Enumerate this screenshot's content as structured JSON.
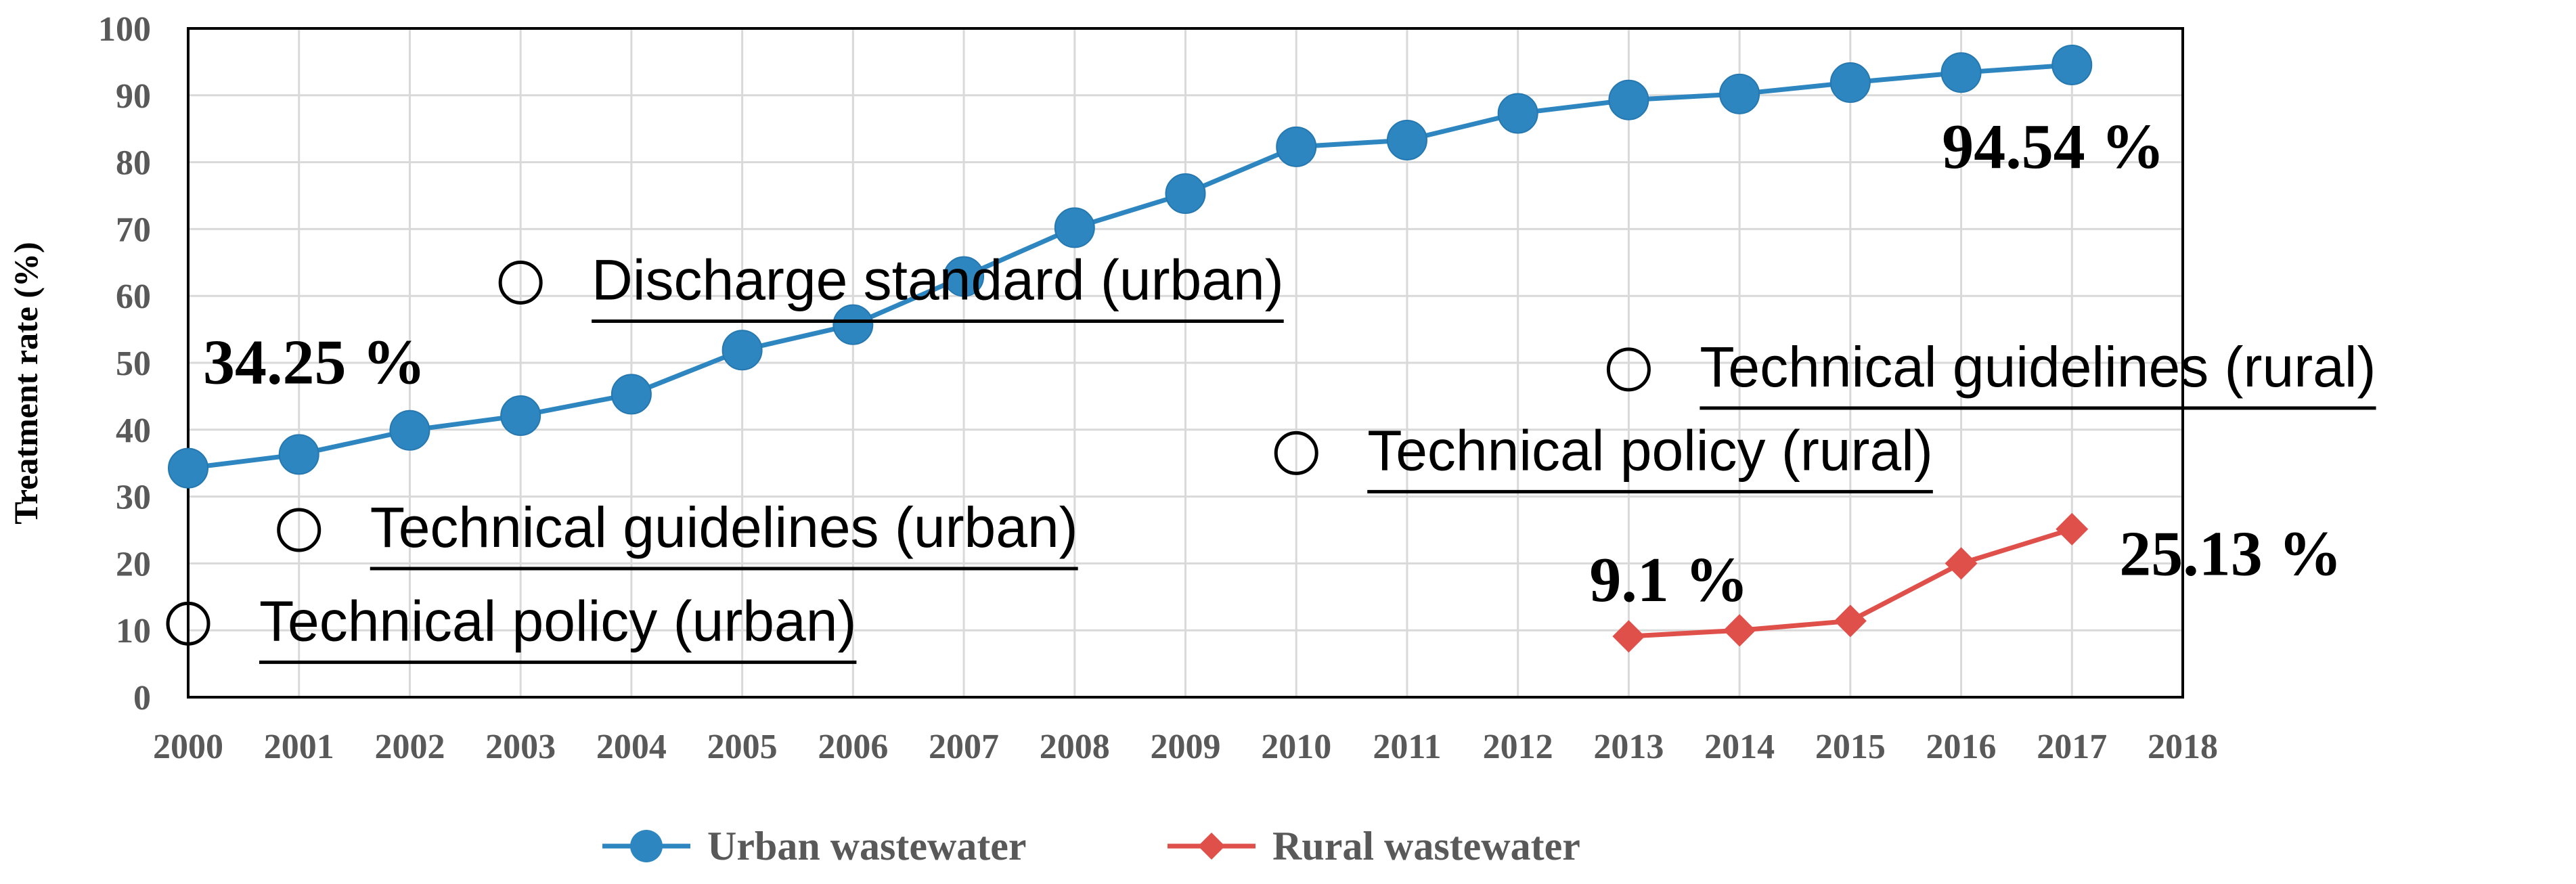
{
  "chart_data": {
    "type": "line",
    "title": "",
    "xlabel": "",
    "ylabel": "Treatment rate (%)",
    "xlim": [
      2000,
      2018
    ],
    "ylim": [
      0,
      100
    ],
    "x_ticks": [
      "2000",
      "2001",
      "2002",
      "2003",
      "2004",
      "2005",
      "2006",
      "2007",
      "2008",
      "2009",
      "2010",
      "2011",
      "2012",
      "2013",
      "2014",
      "2015",
      "2016",
      "2017",
      "2018"
    ],
    "y_ticks": [
      "0",
      "10",
      "20",
      "30",
      "40",
      "50",
      "60",
      "70",
      "80",
      "90",
      "100"
    ],
    "grid": true,
    "legend_position": "bottom",
    "series": [
      {
        "name": "Urban wastewater",
        "color": "#2E86C1",
        "marker": "circle",
        "x": [
          2000,
          2001,
          2002,
          2003,
          2004,
          2005,
          2006,
          2007,
          2008,
          2009,
          2010,
          2011,
          2012,
          2013,
          2014,
          2015,
          2016,
          2017
        ],
        "values": [
          34.25,
          36.3,
          39.9,
          42.1,
          45.3,
          51.9,
          55.7,
          62.9,
          70.2,
          75.3,
          82.3,
          83.3,
          87.3,
          89.3,
          90.2,
          91.9,
          93.4,
          94.54
        ]
      },
      {
        "name": "Rural wastewater",
        "color": "#E0504A",
        "marker": "diamond",
        "x": [
          2013,
          2014,
          2015,
          2016,
          2017
        ],
        "values": [
          9.1,
          10.0,
          11.4,
          20.0,
          25.13
        ]
      }
    ],
    "value_labels": [
      {
        "text": "34.25 %",
        "x": 2000,
        "y": 34.25
      },
      {
        "text": "94.54 %",
        "x": 2017,
        "y": 94.54
      },
      {
        "text": "9.1 %",
        "x": 2013,
        "y": 9.1
      },
      {
        "text": "25.13 %",
        "x": 2017,
        "y": 25.13
      }
    ],
    "policy_events": [
      {
        "label": "Technical policy (urban)",
        "x": 2000,
        "y": 11
      },
      {
        "label": "Technical guidelines (urban)",
        "x": 2001,
        "y": 25
      },
      {
        "label": "Discharge standard (urban)",
        "x": 2003,
        "y": 62
      },
      {
        "label": "Technical policy (rural)",
        "x": 2010,
        "y": 36.5
      },
      {
        "label": "Technical guidelines (rural)",
        "x": 2013,
        "y": 49
      }
    ]
  }
}
